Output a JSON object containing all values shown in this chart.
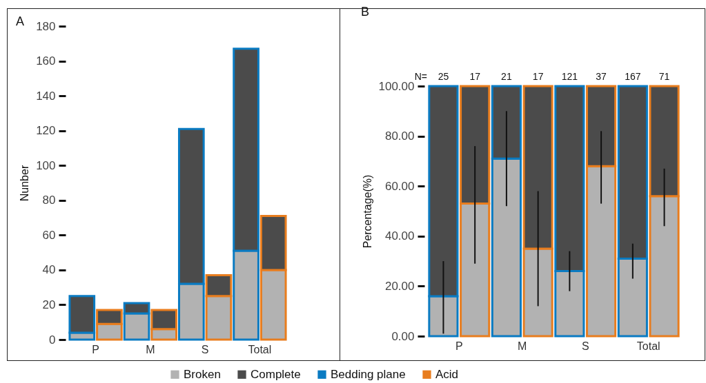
{
  "chart_data": [
    {
      "type": "bar",
      "title": "A",
      "ylabel": "Nunber",
      "categories": [
        "P",
        null,
        "M",
        null,
        "S",
        null,
        "Total",
        null
      ],
      "stacked": true,
      "ylim": [
        0,
        180
      ],
      "yticks": [
        0,
        20,
        40,
        60,
        80,
        100,
        120,
        140,
        160,
        180
      ],
      "legend": "bottom",
      "colors": [
        "#0a7bc2",
        "#e87d1e",
        "#0a7bc2",
        "#e87d1e",
        "#0a7bc2",
        "#e87d1e",
        "#0a7bc2",
        "#e87d1e"
      ],
      "series": [
        {
          "name": "Broken",
          "color": "#b2b2b2",
          "values": [
            4,
            9,
            15,
            6,
            32,
            25,
            51,
            40
          ]
        },
        {
          "name": "Complete",
          "color": "#4b4b4b",
          "values": [
            21,
            8,
            6,
            11,
            89,
            12,
            116,
            31
          ]
        },
        {
          "name": "Bedding plane",
          "color": "#0a7bc2",
          "values": [
            null,
            null,
            null,
            null,
            null,
            null,
            null,
            null
          ]
        },
        {
          "name": "Acid",
          "color": "#e87d1e",
          "values": [
            null,
            null,
            null,
            null,
            null,
            null,
            null,
            null
          ]
        }
      ]
    },
    {
      "type": "bar",
      "title": "B",
      "ylabel": "Percentage(%)",
      "categories": [
        "P",
        null,
        "M",
        null,
        "S",
        null,
        "Total",
        null
      ],
      "stacked": true,
      "ylim": [
        0,
        100
      ],
      "yticks": [
        {
          "value": 0,
          "label": "0.00"
        },
        {
          "value": 20,
          "label": "20.00"
        },
        {
          "value": 40,
          "label": "40.00"
        },
        {
          "value": 60,
          "label": "60.00"
        },
        {
          "value": 80,
          "label": "80.00"
        },
        {
          "value": 100,
          "label": "100.00"
        }
      ],
      "annotations": [
        "N=",
        {
          "text": "25",
          "x": "P",
          "y": 100
        },
        {
          "text": "17",
          "y": 100
        },
        {
          "text": "21",
          "x": "M",
          "y": 100
        },
        {
          "text": "17",
          "y": 100
        },
        {
          "text": "121",
          "x": "S",
          "y": 100
        },
        {
          "text": "37",
          "y": 100
        },
        {
          "text": "167",
          "x": "Total",
          "y": 100
        },
        {
          "text": "71",
          "y": 100
        }
      ],
      "colors": [
        "#0a7bc2",
        "#e87d1e",
        "#0a7bc2",
        "#e87d1e",
        "#0a7bc2",
        "#e87d1e",
        "#0a7bc2",
        "#e87d1e"
      ],
      "series": [
        {
          "color": "#b2b2b2",
          "values": [
            16,
            53,
            71,
            35,
            26,
            68,
            31,
            56
          ],
          "errors": [
            [
              1,
              30
            ],
            [
              29,
              76
            ],
            [
              52,
              90
            ],
            [
              12,
              58
            ],
            [
              18,
              34
            ],
            [
              53,
              82
            ],
            [
              23,
              37
            ],
            [
              44,
              67
            ]
          ]
        },
        {
          "color": "#4b4b4b",
          "values": [
            84,
            47,
            29,
            65,
            74,
            32,
            69,
            44
          ]
        }
      ]
    }
  ]
}
